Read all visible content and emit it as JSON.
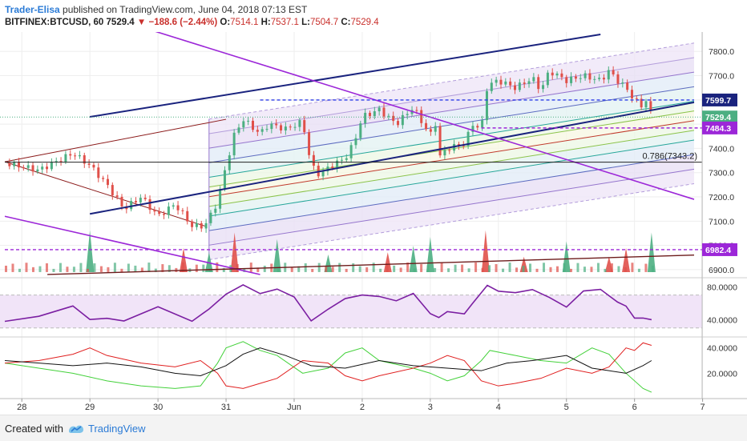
{
  "header": {
    "author": "Trader-Elisa",
    "published": "published on TradingView.com, June 04, 2018 07:13 EST",
    "symbol": "BITFINEX:BTCUSD, 60",
    "last": "7529.4",
    "change_arrow": "▼",
    "change": "−188.6 (−2.44%)",
    "o_label": "O:",
    "o": "7514.1",
    "h_label": "H:",
    "h": "7537.1",
    "l_label": "L:",
    "l": "7504.7",
    "c_label": "C:",
    "c": "7529.4"
  },
  "footer": {
    "created": "Created with",
    "brand": "TradingView"
  },
  "colors": {
    "up": "#4caf82",
    "down": "#e0504a",
    "purple": "#9c27d8",
    "navy": "#1a237e",
    "blue_dash": "#2c3ce8",
    "rsi": "#7b1fa2",
    "grid": "#eeeeee"
  },
  "chart_data": [
    {
      "type": "candlestick",
      "panel": "price",
      "x_ticks": [
        "28",
        "29",
        "30",
        "31",
        "Jun",
        "2",
        "3",
        "4",
        "5",
        "6",
        "7"
      ],
      "y_ticks": [
        "7800.0",
        "7700.0",
        "7600.0",
        "7500.0",
        "7400.0",
        "7300.0",
        "7200.0",
        "7100.0",
        "7000.0",
        "6900.0"
      ],
      "ylim": [
        6870,
        7880
      ],
      "price_labels": [
        {
          "text": "7599.7",
          "value": 7599.7,
          "style": "navy"
        },
        {
          "text": "7529.4",
          "value": 7529.4,
          "style": "green"
        },
        {
          "text": "7484.3",
          "value": 7484.3,
          "style": "purple"
        },
        {
          "text": "6982.4",
          "value": 6982.4,
          "style": "purple"
        }
      ],
      "horizontal_lines": [
        {
          "value": 7599.7,
          "style": "blue-dashed"
        },
        {
          "value": 7484.3,
          "style": "purple-dashed"
        },
        {
          "value": 6982.4,
          "style": "purple-dashed"
        },
        {
          "value": 7343.2,
          "style": "black",
          "label": "0.786(7343.2)"
        }
      ],
      "ohlc_path": [
        [
          0,
          7340
        ],
        [
          4,
          7310
        ],
        [
          8,
          7380
        ],
        [
          10,
          7330
        ],
        [
          12,
          7250
        ],
        [
          14,
          7150
        ],
        [
          16,
          7200
        ],
        [
          18,
          7120
        ],
        [
          20,
          7170
        ],
        [
          22,
          7080
        ],
        [
          23.5,
          7080
        ],
        [
          25,
          7180
        ],
        [
          26,
          7330
        ],
        [
          27,
          7460
        ],
        [
          28,
          7520
        ],
        [
          30,
          7460
        ],
        [
          31,
          7500
        ],
        [
          33,
          7480
        ],
        [
          35,
          7510
        ],
        [
          36,
          7330
        ],
        [
          37,
          7290
        ],
        [
          38,
          7320
        ],
        [
          40,
          7360
        ],
        [
          41,
          7420
        ],
        [
          42,
          7530
        ],
        [
          44,
          7560
        ],
        [
          46,
          7500
        ],
        [
          48,
          7570
        ],
        [
          50,
          7450
        ],
        [
          50.5,
          7540
        ],
        [
          51,
          7360
        ],
        [
          52,
          7400
        ],
        [
          54,
          7420
        ],
        [
          55,
          7500
        ],
        [
          56,
          7480
        ],
        [
          56.7,
          7660
        ],
        [
          58,
          7680
        ],
        [
          60,
          7650
        ],
        [
          62,
          7690
        ],
        [
          63,
          7640
        ],
        [
          64,
          7720
        ],
        [
          66,
          7680
        ],
        [
          68,
          7700
        ],
        [
          70,
          7680
        ],
        [
          71,
          7720
        ],
        [
          72,
          7680
        ],
        [
          73,
          7650
        ],
        [
          74,
          7600
        ],
        [
          75,
          7570
        ],
        [
          75.5,
          7610
        ],
        [
          76,
          7529.4
        ]
      ],
      "volume_spikes": [
        [
          10,
          0.95
        ],
        [
          21,
          0.55
        ],
        [
          24,
          0.45
        ],
        [
          27,
          0.9
        ],
        [
          32,
          0.75
        ],
        [
          38,
          0.4
        ],
        [
          45,
          0.45
        ],
        [
          48,
          0.6
        ],
        [
          50,
          0.8
        ],
        [
          56.5,
          0.95
        ],
        [
          61,
          0.35
        ],
        [
          66,
          0.7
        ],
        [
          71,
          0.35
        ],
        [
          73,
          0.55
        ],
        [
          76,
          0.9
        ]
      ]
    },
    {
      "type": "line",
      "panel": "rsi",
      "y_ticks": [
        "80.0000",
        "40.0000"
      ],
      "ylim": [
        20,
        90
      ],
      "band": [
        30,
        70
      ],
      "series": [
        {
          "values": [
            [
              0,
              38
            ],
            [
              4,
              45
            ],
            [
              8,
              55
            ],
            [
              10,
              38
            ],
            [
              12,
              44
            ],
            [
              14,
              40
            ],
            [
              18,
              55
            ],
            [
              22,
              38
            ],
            [
              24,
              50
            ],
            [
              26,
              72
            ],
            [
              28,
              85
            ],
            [
              30,
              70
            ],
            [
              32,
              75
            ],
            [
              34,
              70
            ],
            [
              36,
              40
            ],
            [
              38,
              50
            ],
            [
              40,
              65
            ],
            [
              42,
              73
            ],
            [
              44,
              68
            ],
            [
              46,
              60
            ],
            [
              48,
              73
            ],
            [
              50,
              50
            ],
            [
              51,
              42
            ],
            [
              52,
              48
            ],
            [
              54,
              45
            ],
            [
              55,
              60
            ],
            [
              56.7,
              80
            ],
            [
              58,
              76
            ],
            [
              60,
              70
            ],
            [
              62,
              76
            ],
            [
              64,
              70
            ],
            [
              66,
              55
            ],
            [
              68,
              72
            ],
            [
              70,
              78
            ],
            [
              72,
              64
            ],
            [
              73,
              56
            ],
            [
              74,
              40
            ],
            [
              75,
              45
            ],
            [
              76,
              38
            ]
          ]
        }
      ]
    },
    {
      "type": "line",
      "panel": "dmi",
      "y_ticks": [
        "40.0000",
        "20.0000"
      ],
      "ylim": [
        0,
        48
      ],
      "series": [
        {
          "color": "green",
          "values": [
            [
              0,
              28
            ],
            [
              4,
              24
            ],
            [
              8,
              20
            ],
            [
              12,
              14
            ],
            [
              16,
              10
            ],
            [
              20,
              8
            ],
            [
              23,
              10
            ],
            [
              25,
              28
            ],
            [
              26,
              40
            ],
            [
              28,
              45
            ],
            [
              30,
              38
            ],
            [
              32,
              34
            ],
            [
              35,
              20
            ],
            [
              38,
              24
            ],
            [
              40,
              36
            ],
            [
              42,
              40
            ],
            [
              44,
              30
            ],
            [
              48,
              24
            ],
            [
              50,
              20
            ],
            [
              52,
              14
            ],
            [
              54,
              18
            ],
            [
              56,
              30
            ],
            [
              57,
              38
            ],
            [
              60,
              34
            ],
            [
              63,
              30
            ],
            [
              66,
              28
            ],
            [
              69,
              40
            ],
            [
              71,
              35
            ],
            [
              73,
              20
            ],
            [
              75,
              8
            ],
            [
              76,
              5
            ]
          ]
        },
        {
          "color": "red",
          "values": [
            [
              0,
              28
            ],
            [
              4,
              30
            ],
            [
              8,
              35
            ],
            [
              10,
              40
            ],
            [
              12,
              34
            ],
            [
              16,
              28
            ],
            [
              20,
              25
            ],
            [
              23,
              30
            ],
            [
              25,
              20
            ],
            [
              26,
              10
            ],
            [
              28,
              8
            ],
            [
              30,
              12
            ],
            [
              32,
              16
            ],
            [
              35,
              30
            ],
            [
              38,
              28
            ],
            [
              40,
              18
            ],
            [
              42,
              14
            ],
            [
              44,
              18
            ],
            [
              48,
              24
            ],
            [
              50,
              28
            ],
            [
              52,
              34
            ],
            [
              54,
              30
            ],
            [
              56,
              14
            ],
            [
              58,
              10
            ],
            [
              60,
              12
            ],
            [
              63,
              16
            ],
            [
              66,
              24
            ],
            [
              69,
              20
            ],
            [
              71,
              25
            ],
            [
              73,
              40
            ],
            [
              74,
              38
            ],
            [
              75,
              44
            ],
            [
              76,
              42
            ]
          ]
        },
        {
          "color": "black",
          "values": [
            [
              0,
              30
            ],
            [
              4,
              28
            ],
            [
              8,
              26
            ],
            [
              12,
              28
            ],
            [
              16,
              25
            ],
            [
              20,
              20
            ],
            [
              23,
              18
            ],
            [
              26,
              26
            ],
            [
              28,
              35
            ],
            [
              30,
              40
            ],
            [
              33,
              34
            ],
            [
              36,
              26
            ],
            [
              40,
              24
            ],
            [
              44,
              30
            ],
            [
              48,
              26
            ],
            [
              52,
              24
            ],
            [
              56,
              22
            ],
            [
              59,
              28
            ],
            [
              62,
              30
            ],
            [
              66,
              34
            ],
            [
              69,
              24
            ],
            [
              71,
              22
            ],
            [
              73,
              20
            ],
            [
              75,
              26
            ],
            [
              76,
              30
            ]
          ]
        }
      ]
    }
  ]
}
